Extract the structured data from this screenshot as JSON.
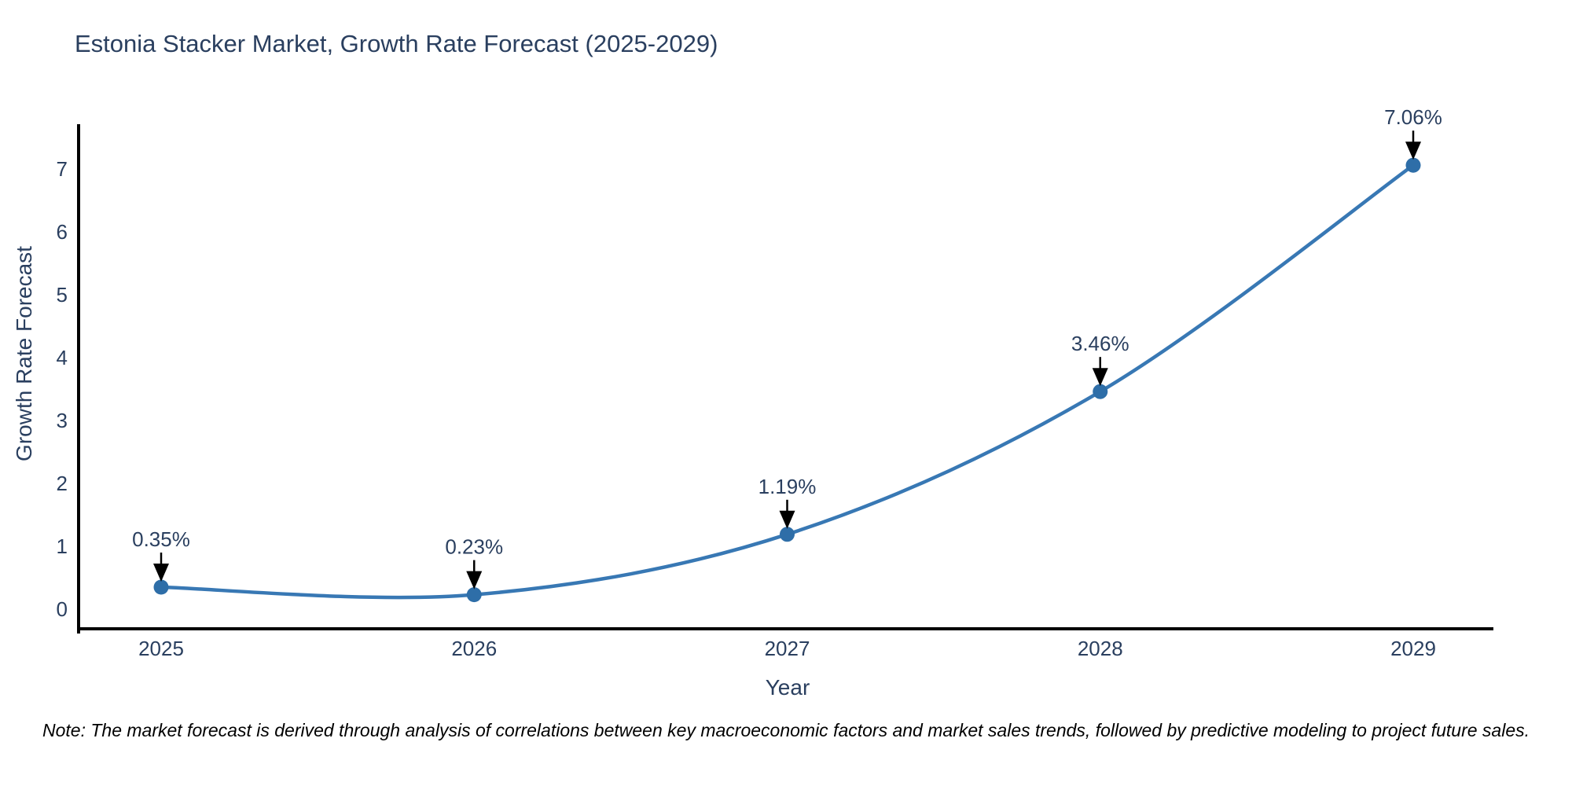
{
  "title": "Estonia Stacker Market, Growth Rate Forecast (2025-2029)",
  "note": "Note: The market forecast is derived through analysis of correlations between key macroeconomic factors and market sales trends, followed by predictive modeling to project future sales.",
  "chart_data": {
    "type": "line",
    "title": "Estonia Stacker Market, Growth Rate Forecast (2025-2029)",
    "x": [
      2025,
      2026,
      2027,
      2028,
      2029
    ],
    "values": [
      0.35,
      0.23,
      1.19,
      3.46,
      7.06
    ],
    "point_labels": [
      "0.35%",
      "0.23%",
      "1.19%",
      "3.46%",
      "7.06%"
    ],
    "xlabel": "Year",
    "ylabel": "Growth Rate Forecast",
    "yticks": [
      0,
      1,
      2,
      3,
      4,
      5,
      6,
      7
    ],
    "ylim": [
      -0.31,
      7.69
    ],
    "xlim": [
      2024.74,
      2029.26
    ],
    "grid": false,
    "legend": "none",
    "line_shape": "spline",
    "line_color": "#3878b4",
    "marker_color": "#2e6ea8",
    "axis_color": "#000000",
    "text_color": "#2a3f5f",
    "arrow_color": "#000000"
  }
}
